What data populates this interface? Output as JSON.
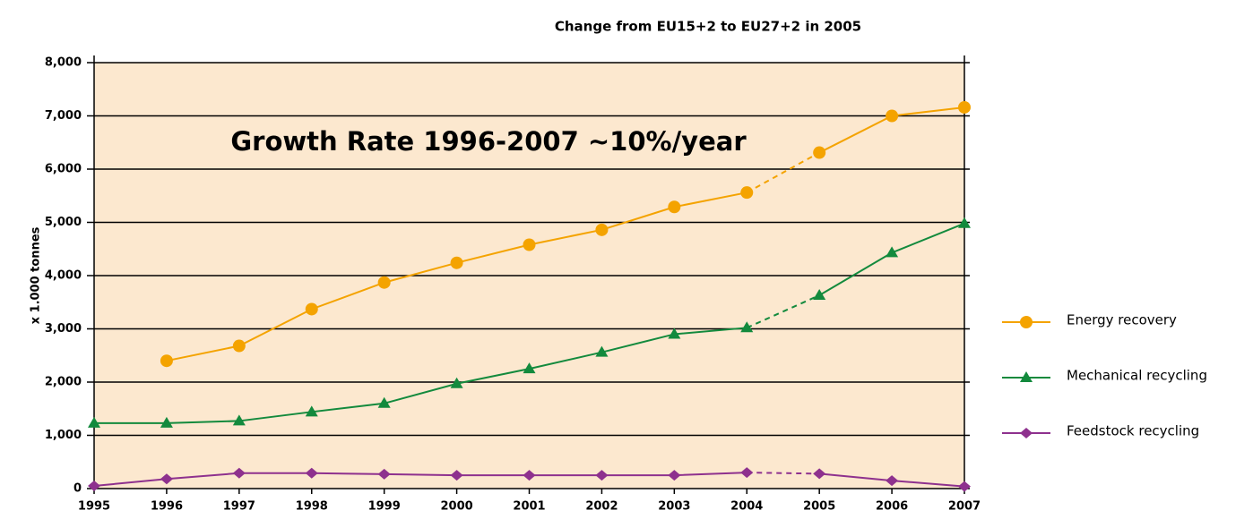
{
  "chart_data": {
    "type": "line",
    "title": "Change from EU15+2 to EU27+2 in 2005",
    "annotation": "Growth Rate 1996-2007 ~10%/year",
    "y_label": "x 1.000 tonnes",
    "x": [
      1995,
      1996,
      1997,
      1998,
      1999,
      2000,
      2001,
      2002,
      2003,
      2004,
      2005,
      2006,
      2007
    ],
    "xlim": [
      1995,
      2007
    ],
    "xticks": [
      1995,
      1996,
      1997,
      1998,
      1999,
      2000,
      2001,
      2002,
      2003,
      2004,
      2005,
      2006,
      2007
    ],
    "ylim": [
      0,
      8000
    ],
    "yticks": [
      0,
      {
        "value": 1000,
        "label": "1,000"
      },
      {
        "value": 2000,
        "label": "2,000"
      },
      {
        "value": 3000,
        "label": "3,000"
      },
      {
        "value": 4000,
        "label": "4,000"
      },
      {
        "value": 5000,
        "label": "5,000"
      },
      {
        "value": 6000,
        "label": "6,000"
      },
      {
        "value": 7000,
        "label": "7,000"
      },
      {
        "value": 8000,
        "label": "8,000"
      }
    ],
    "grid": true,
    "background": "#fce8cf",
    "dashed_between": [
      2004,
      2005
    ],
    "legend": "right",
    "series": [
      {
        "name": "Energy recovery",
        "color": "#f4a300",
        "marker": "circle",
        "values": [
          null,
          2400,
          2680,
          3370,
          3870,
          4240,
          4580,
          4860,
          5290,
          5560,
          6310,
          7000,
          7160
        ]
      },
      {
        "name": "Mechanical recycling",
        "color": "#138a3d",
        "marker": "triangle",
        "values": [
          1230,
          1230,
          1270,
          1440,
          1600,
          1970,
          2250,
          2560,
          2900,
          3020,
          3630,
          4430,
          4980
        ]
      },
      {
        "name": "Feedstock recycling",
        "color": "#8e318e",
        "marker": "diamond",
        "values": [
          50,
          180,
          290,
          290,
          270,
          250,
          250,
          250,
          250,
          300,
          280,
          150,
          40
        ]
      }
    ]
  }
}
